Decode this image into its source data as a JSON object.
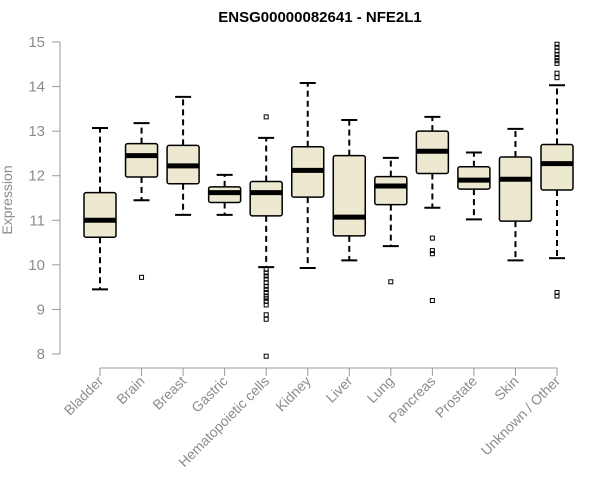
{
  "chart_data": {
    "type": "boxplot",
    "title": "ENSG00000082641 - NFE2L1",
    "xlabel": "",
    "ylabel": "Expression",
    "ylim": [
      8,
      15
    ],
    "yticks": [
      8,
      9,
      10,
      11,
      12,
      13,
      14,
      15
    ],
    "box_color": "#ede8d0",
    "categories": [
      "Bladder",
      "Brain",
      "Breast",
      "Gastric",
      "Hematopoietic cells",
      "Kidney",
      "Liver",
      "Lung",
      "Pancreas",
      "Prostate",
      "Skin",
      "Unknown / Other"
    ],
    "boxes": [
      {
        "name": "Bladder",
        "whisker_low": 9.45,
        "q1": 10.62,
        "median": 11.0,
        "q3": 11.62,
        "whisker_high": 13.07,
        "outliers": []
      },
      {
        "name": "Brain",
        "whisker_low": 11.45,
        "q1": 11.97,
        "median": 12.45,
        "q3": 12.72,
        "whisker_high": 13.18,
        "outliers": [
          9.72
        ]
      },
      {
        "name": "Breast",
        "whisker_low": 11.12,
        "q1": 11.82,
        "median": 12.22,
        "q3": 12.68,
        "whisker_high": 13.77,
        "outliers": []
      },
      {
        "name": "Gastric",
        "whisker_low": 11.12,
        "q1": 11.4,
        "median": 11.62,
        "q3": 11.75,
        "whisker_high": 12.02,
        "outliers": []
      },
      {
        "name": "Hematopoietic cells",
        "whisker_low": 9.95,
        "q1": 11.1,
        "median": 11.62,
        "q3": 11.87,
        "whisker_high": 12.85,
        "outliers": [
          13.32,
          9.9,
          9.82,
          9.75,
          9.68,
          9.6,
          9.52,
          9.45,
          9.38,
          9.3,
          9.25,
          9.18,
          9.1,
          8.88,
          8.78,
          7.95
        ]
      },
      {
        "name": "Kidney",
        "whisker_low": 9.93,
        "q1": 11.52,
        "median": 12.12,
        "q3": 12.65,
        "whisker_high": 14.08,
        "outliers": []
      },
      {
        "name": "Liver",
        "whisker_low": 10.1,
        "q1": 10.65,
        "median": 11.07,
        "q3": 12.45,
        "whisker_high": 13.25,
        "outliers": []
      },
      {
        "name": "Lung",
        "whisker_low": 10.42,
        "q1": 11.35,
        "median": 11.77,
        "q3": 11.98,
        "whisker_high": 12.4,
        "outliers": [
          9.62
        ]
      },
      {
        "name": "Pancreas",
        "whisker_low": 11.28,
        "q1": 12.05,
        "median": 12.55,
        "q3": 13.0,
        "whisker_high": 13.32,
        "outliers": [
          10.6,
          10.32,
          10.25,
          9.2
        ]
      },
      {
        "name": "Prostate",
        "whisker_low": 11.02,
        "q1": 11.7,
        "median": 11.9,
        "q3": 12.2,
        "whisker_high": 12.52,
        "outliers": []
      },
      {
        "name": "Skin",
        "whisker_low": 10.1,
        "q1": 10.98,
        "median": 11.92,
        "q3": 12.42,
        "whisker_high": 13.05,
        "outliers": []
      },
      {
        "name": "Unknown / Other",
        "whisker_low": 10.15,
        "q1": 11.68,
        "median": 12.27,
        "q3": 12.7,
        "whisker_high": 14.03,
        "outliers": [
          14.95,
          14.88,
          14.8,
          14.72,
          14.65,
          14.58,
          14.52,
          14.3,
          14.2,
          9.38,
          9.3
        ]
      }
    ]
  }
}
